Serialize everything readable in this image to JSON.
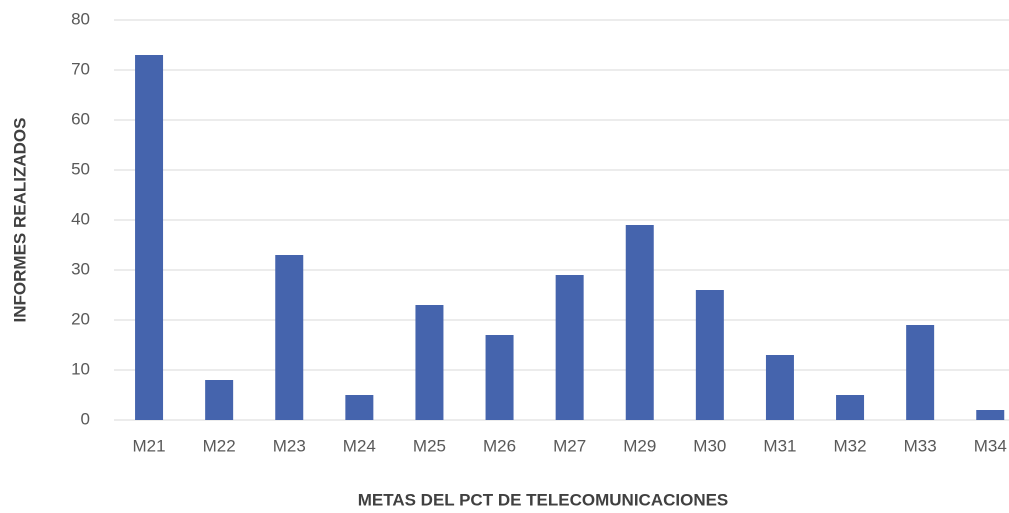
{
  "chart_data": {
    "type": "bar",
    "x_label": "METAS DEL PCT DE TELECOMUNICACIONES",
    "y_label": "INFORMES REALIZADOS",
    "categories": [
      "M21",
      "M22",
      "M23",
      "M24",
      "M25",
      "M26",
      "M27",
      "M29",
      "M30",
      "M31",
      "M32",
      "M33",
      "M34"
    ],
    "values": [
      73,
      8,
      33,
      5,
      23,
      17,
      29,
      39,
      26,
      13,
      5,
      19,
      2
    ],
    "color": "#4564ad",
    "ylim": [
      0,
      80
    ],
    "yticks": [
      0,
      10,
      20,
      30,
      40,
      50,
      60,
      70,
      80
    ],
    "grid": true
  }
}
